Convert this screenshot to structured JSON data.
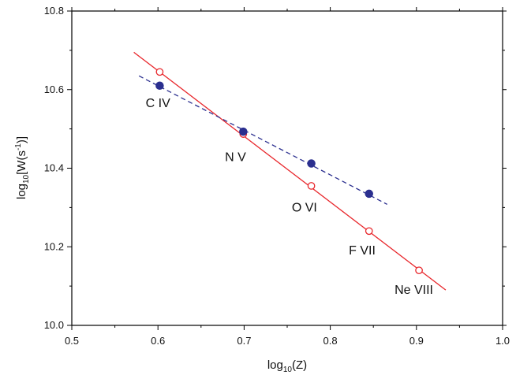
{
  "chart_data": {
    "type": "scatter",
    "title": "",
    "xlabel": "log",
    "xlabel_sub": "10",
    "xlabel_tail": "(Z)",
    "ylabel": "log",
    "ylabel_sub": "10",
    "ylabel_mid": "[W(s",
    "ylabel_sup": "-1",
    "ylabel_tail": ")]",
    "xlim": [
      0.5,
      1.0
    ],
    "ylim": [
      10.0,
      10.8
    ],
    "xticks": [
      0.5,
      0.6,
      0.7,
      0.8,
      0.9,
      1.0
    ],
    "xtick_labels": [
      "0.5",
      "0.6",
      "0.7",
      "0.8",
      "0.9",
      "1.0"
    ],
    "yticks": [
      10.0,
      10.2,
      10.4,
      10.6,
      10.8
    ],
    "ytick_labels": [
      "10.0",
      "10.2",
      "10.4",
      "10.6",
      "10.8"
    ],
    "grid": false,
    "series": [
      {
        "marker": "open-circle",
        "color": "#e8262b",
        "points": [
          {
            "x": 0.602,
            "y": 10.645
          },
          {
            "x": 0.699,
            "y": 10.487
          },
          {
            "x": 0.778,
            "y": 10.355
          },
          {
            "x": 0.845,
            "y": 10.24
          },
          {
            "x": 0.903,
            "y": 10.14
          }
        ],
        "fit_line": {
          "style": "solid",
          "from": [
            0.572,
            10.695
          ],
          "to": [
            0.934,
            10.09
          ]
        }
      },
      {
        "marker": "filled-circle",
        "color": "#2b2f8f",
        "points": [
          {
            "x": 0.602,
            "y": 10.61
          },
          {
            "x": 0.699,
            "y": 10.493
          },
          {
            "x": 0.778,
            "y": 10.412
          },
          {
            "x": 0.845,
            "y": 10.335
          }
        ],
        "fit_line": {
          "style": "dashed",
          "from": [
            0.578,
            10.635
          ],
          "to": [
            0.866,
            10.308
          ]
        }
      }
    ],
    "annotations": [
      {
        "text": "C IV",
        "x": 0.6,
        "y": 10.555
      },
      {
        "text": "N V",
        "x": 0.69,
        "y": 10.418
      },
      {
        "text": "O VI",
        "x": 0.77,
        "y": 10.29
      },
      {
        "text": "F VII",
        "x": 0.837,
        "y": 10.18
      },
      {
        "text": "Ne VIII",
        "x": 0.897,
        "y": 10.08
      }
    ]
  }
}
